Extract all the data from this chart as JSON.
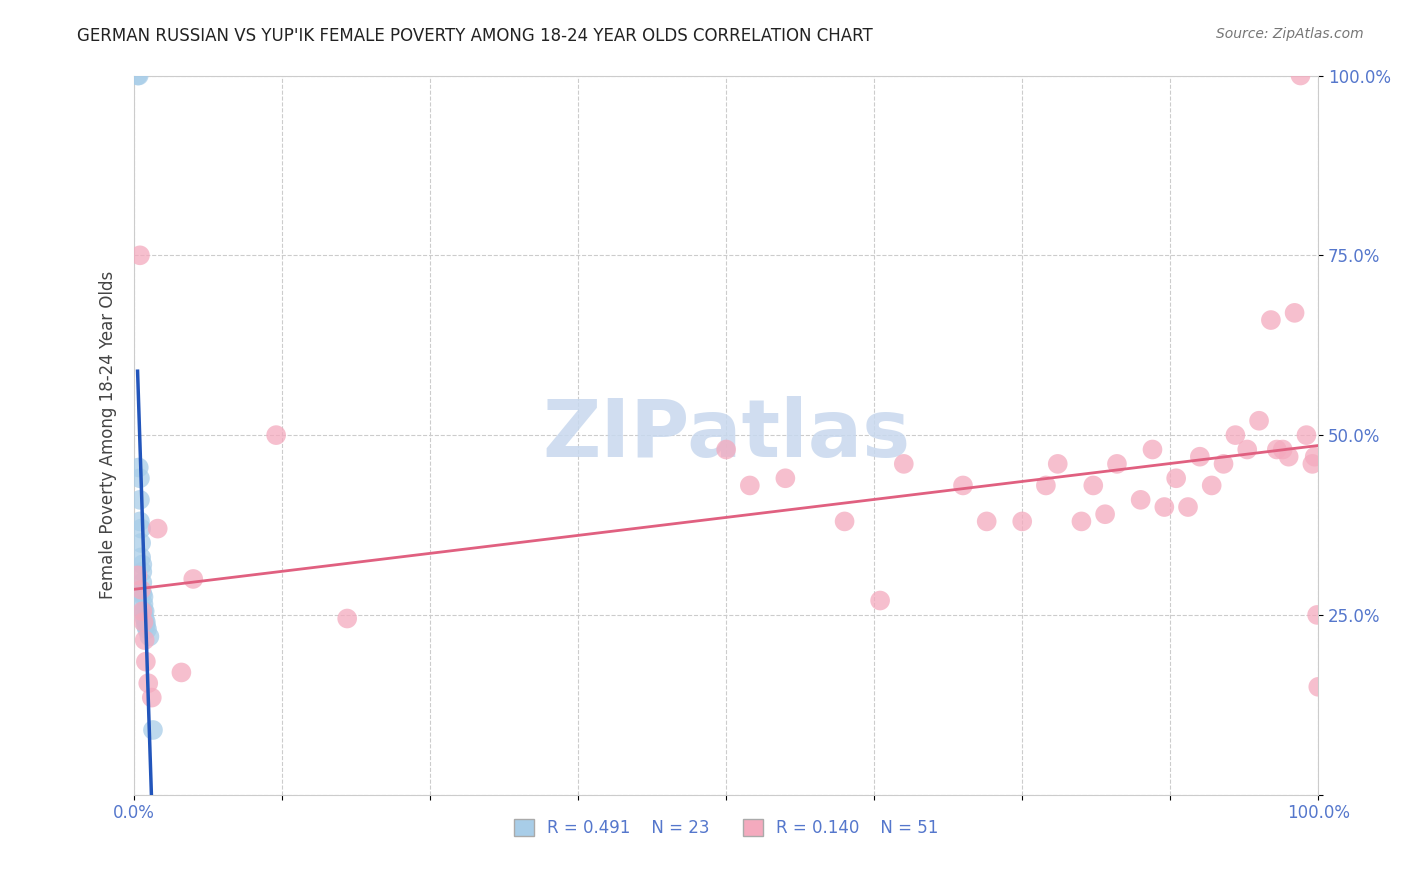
{
  "title": "GERMAN RUSSIAN VS YUP'IK FEMALE POVERTY AMONG 18-24 YEAR OLDS CORRELATION CHART",
  "source": "Source: ZipAtlas.com",
  "ylabel": "Female Poverty Among 18-24 Year Olds",
  "xlim": [
    0,
    1.0
  ],
  "ylim": [
    0,
    1.0
  ],
  "xtick_vals": [
    0.0,
    0.125,
    0.25,
    0.375,
    0.5,
    0.625,
    0.75,
    0.875,
    1.0
  ],
  "xtick_edge_labels": {
    "0.0": "0.0%",
    "1.0": "100.0%"
  },
  "ytick_vals": [
    0.0,
    0.25,
    0.5,
    0.75,
    1.0
  ],
  "ytick_labels": [
    "",
    "25.0%",
    "50.0%",
    "75.0%",
    "100.0%"
  ],
  "legend_r1": "R = 0.491",
  "legend_n1": "N = 23",
  "legend_r2": "R = 0.140",
  "legend_n2": "N = 51",
  "color_blue": "#A8CDE8",
  "color_pink": "#F4AABE",
  "line_blue": "#2255BB",
  "line_pink": "#E06080",
  "tick_color": "#5577CC",
  "watermark_color": "#C8D8EE",
  "blue_scatter_x": [
    0.003,
    0.004,
    0.004,
    0.005,
    0.005,
    0.005,
    0.006,
    0.006,
    0.006,
    0.007,
    0.007,
    0.007,
    0.007,
    0.008,
    0.008,
    0.008,
    0.009,
    0.009,
    0.01,
    0.01,
    0.011,
    0.013,
    0.016
  ],
  "blue_scatter_y": [
    1.0,
    1.0,
    0.455,
    0.44,
    0.41,
    0.38,
    0.37,
    0.35,
    0.33,
    0.32,
    0.31,
    0.295,
    0.28,
    0.275,
    0.265,
    0.255,
    0.255,
    0.245,
    0.24,
    0.235,
    0.23,
    0.22,
    0.09
  ],
  "pink_scatter_x": [
    0.003,
    0.005,
    0.006,
    0.007,
    0.008,
    0.009,
    0.01,
    0.012,
    0.015,
    0.02,
    0.04,
    0.05,
    0.12,
    0.18,
    0.5,
    0.52,
    0.55,
    0.6,
    0.63,
    0.65,
    0.7,
    0.72,
    0.75,
    0.77,
    0.78,
    0.8,
    0.81,
    0.82,
    0.83,
    0.85,
    0.86,
    0.87,
    0.88,
    0.89,
    0.9,
    0.91,
    0.92,
    0.93,
    0.94,
    0.95,
    0.96,
    0.965,
    0.97,
    0.975,
    0.98,
    0.985,
    0.99,
    0.995,
    0.997,
    0.999,
    1.0
  ],
  "pink_scatter_y": [
    0.305,
    0.75,
    0.285,
    0.255,
    0.24,
    0.215,
    0.185,
    0.155,
    0.135,
    0.37,
    0.17,
    0.3,
    0.5,
    0.245,
    0.48,
    0.43,
    0.44,
    0.38,
    0.27,
    0.46,
    0.43,
    0.38,
    0.38,
    0.43,
    0.46,
    0.38,
    0.43,
    0.39,
    0.46,
    0.41,
    0.48,
    0.4,
    0.44,
    0.4,
    0.47,
    0.43,
    0.46,
    0.5,
    0.48,
    0.52,
    0.66,
    0.48,
    0.48,
    0.47,
    0.67,
    1.0,
    0.5,
    0.46,
    0.47,
    0.25,
    0.15
  ]
}
